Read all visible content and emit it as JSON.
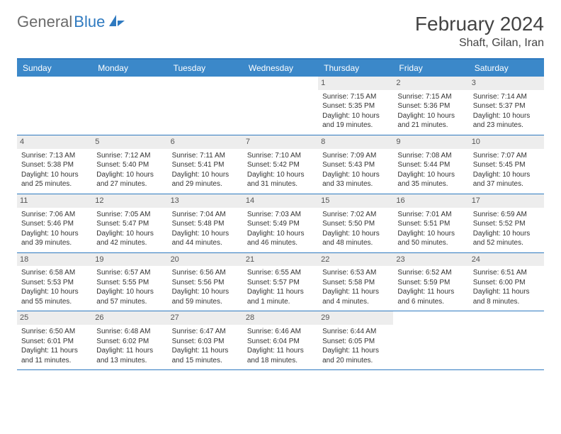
{
  "logo": {
    "text1": "General",
    "text2": "Blue"
  },
  "title": "February 2024",
  "location": "Shaft, Gilan, Iran",
  "colors": {
    "header_bg": "#3b88c9",
    "border": "#2f7ac0",
    "daynum_bg": "#ededed",
    "logo_gray": "#6a6a6a",
    "logo_blue": "#2f7ac0"
  },
  "day_labels": [
    "Sunday",
    "Monday",
    "Tuesday",
    "Wednesday",
    "Thursday",
    "Friday",
    "Saturday"
  ],
  "weeks": [
    [
      {
        "n": "",
        "empty": true
      },
      {
        "n": "",
        "empty": true
      },
      {
        "n": "",
        "empty": true
      },
      {
        "n": "",
        "empty": true
      },
      {
        "n": "1",
        "sr": "Sunrise: 7:15 AM",
        "ss": "Sunset: 5:35 PM",
        "dl1": "Daylight: 10 hours",
        "dl2": "and 19 minutes."
      },
      {
        "n": "2",
        "sr": "Sunrise: 7:15 AM",
        "ss": "Sunset: 5:36 PM",
        "dl1": "Daylight: 10 hours",
        "dl2": "and 21 minutes."
      },
      {
        "n": "3",
        "sr": "Sunrise: 7:14 AM",
        "ss": "Sunset: 5:37 PM",
        "dl1": "Daylight: 10 hours",
        "dl2": "and 23 minutes."
      }
    ],
    [
      {
        "n": "4",
        "sr": "Sunrise: 7:13 AM",
        "ss": "Sunset: 5:38 PM",
        "dl1": "Daylight: 10 hours",
        "dl2": "and 25 minutes."
      },
      {
        "n": "5",
        "sr": "Sunrise: 7:12 AM",
        "ss": "Sunset: 5:40 PM",
        "dl1": "Daylight: 10 hours",
        "dl2": "and 27 minutes."
      },
      {
        "n": "6",
        "sr": "Sunrise: 7:11 AM",
        "ss": "Sunset: 5:41 PM",
        "dl1": "Daylight: 10 hours",
        "dl2": "and 29 minutes."
      },
      {
        "n": "7",
        "sr": "Sunrise: 7:10 AM",
        "ss": "Sunset: 5:42 PM",
        "dl1": "Daylight: 10 hours",
        "dl2": "and 31 minutes."
      },
      {
        "n": "8",
        "sr": "Sunrise: 7:09 AM",
        "ss": "Sunset: 5:43 PM",
        "dl1": "Daylight: 10 hours",
        "dl2": "and 33 minutes."
      },
      {
        "n": "9",
        "sr": "Sunrise: 7:08 AM",
        "ss": "Sunset: 5:44 PM",
        "dl1": "Daylight: 10 hours",
        "dl2": "and 35 minutes."
      },
      {
        "n": "10",
        "sr": "Sunrise: 7:07 AM",
        "ss": "Sunset: 5:45 PM",
        "dl1": "Daylight: 10 hours",
        "dl2": "and 37 minutes."
      }
    ],
    [
      {
        "n": "11",
        "sr": "Sunrise: 7:06 AM",
        "ss": "Sunset: 5:46 PM",
        "dl1": "Daylight: 10 hours",
        "dl2": "and 39 minutes."
      },
      {
        "n": "12",
        "sr": "Sunrise: 7:05 AM",
        "ss": "Sunset: 5:47 PM",
        "dl1": "Daylight: 10 hours",
        "dl2": "and 42 minutes."
      },
      {
        "n": "13",
        "sr": "Sunrise: 7:04 AM",
        "ss": "Sunset: 5:48 PM",
        "dl1": "Daylight: 10 hours",
        "dl2": "and 44 minutes."
      },
      {
        "n": "14",
        "sr": "Sunrise: 7:03 AM",
        "ss": "Sunset: 5:49 PM",
        "dl1": "Daylight: 10 hours",
        "dl2": "and 46 minutes."
      },
      {
        "n": "15",
        "sr": "Sunrise: 7:02 AM",
        "ss": "Sunset: 5:50 PM",
        "dl1": "Daylight: 10 hours",
        "dl2": "and 48 minutes."
      },
      {
        "n": "16",
        "sr": "Sunrise: 7:01 AM",
        "ss": "Sunset: 5:51 PM",
        "dl1": "Daylight: 10 hours",
        "dl2": "and 50 minutes."
      },
      {
        "n": "17",
        "sr": "Sunrise: 6:59 AM",
        "ss": "Sunset: 5:52 PM",
        "dl1": "Daylight: 10 hours",
        "dl2": "and 52 minutes."
      }
    ],
    [
      {
        "n": "18",
        "sr": "Sunrise: 6:58 AM",
        "ss": "Sunset: 5:53 PM",
        "dl1": "Daylight: 10 hours",
        "dl2": "and 55 minutes."
      },
      {
        "n": "19",
        "sr": "Sunrise: 6:57 AM",
        "ss": "Sunset: 5:55 PM",
        "dl1": "Daylight: 10 hours",
        "dl2": "and 57 minutes."
      },
      {
        "n": "20",
        "sr": "Sunrise: 6:56 AM",
        "ss": "Sunset: 5:56 PM",
        "dl1": "Daylight: 10 hours",
        "dl2": "and 59 minutes."
      },
      {
        "n": "21",
        "sr": "Sunrise: 6:55 AM",
        "ss": "Sunset: 5:57 PM",
        "dl1": "Daylight: 11 hours",
        "dl2": "and 1 minute."
      },
      {
        "n": "22",
        "sr": "Sunrise: 6:53 AM",
        "ss": "Sunset: 5:58 PM",
        "dl1": "Daylight: 11 hours",
        "dl2": "and 4 minutes."
      },
      {
        "n": "23",
        "sr": "Sunrise: 6:52 AM",
        "ss": "Sunset: 5:59 PM",
        "dl1": "Daylight: 11 hours",
        "dl2": "and 6 minutes."
      },
      {
        "n": "24",
        "sr": "Sunrise: 6:51 AM",
        "ss": "Sunset: 6:00 PM",
        "dl1": "Daylight: 11 hours",
        "dl2": "and 8 minutes."
      }
    ],
    [
      {
        "n": "25",
        "sr": "Sunrise: 6:50 AM",
        "ss": "Sunset: 6:01 PM",
        "dl1": "Daylight: 11 hours",
        "dl2": "and 11 minutes."
      },
      {
        "n": "26",
        "sr": "Sunrise: 6:48 AM",
        "ss": "Sunset: 6:02 PM",
        "dl1": "Daylight: 11 hours",
        "dl2": "and 13 minutes."
      },
      {
        "n": "27",
        "sr": "Sunrise: 6:47 AM",
        "ss": "Sunset: 6:03 PM",
        "dl1": "Daylight: 11 hours",
        "dl2": "and 15 minutes."
      },
      {
        "n": "28",
        "sr": "Sunrise: 6:46 AM",
        "ss": "Sunset: 6:04 PM",
        "dl1": "Daylight: 11 hours",
        "dl2": "and 18 minutes."
      },
      {
        "n": "29",
        "sr": "Sunrise: 6:44 AM",
        "ss": "Sunset: 6:05 PM",
        "dl1": "Daylight: 11 hours",
        "dl2": "and 20 minutes."
      },
      {
        "n": "",
        "empty": true
      },
      {
        "n": "",
        "empty": true
      }
    ]
  ]
}
